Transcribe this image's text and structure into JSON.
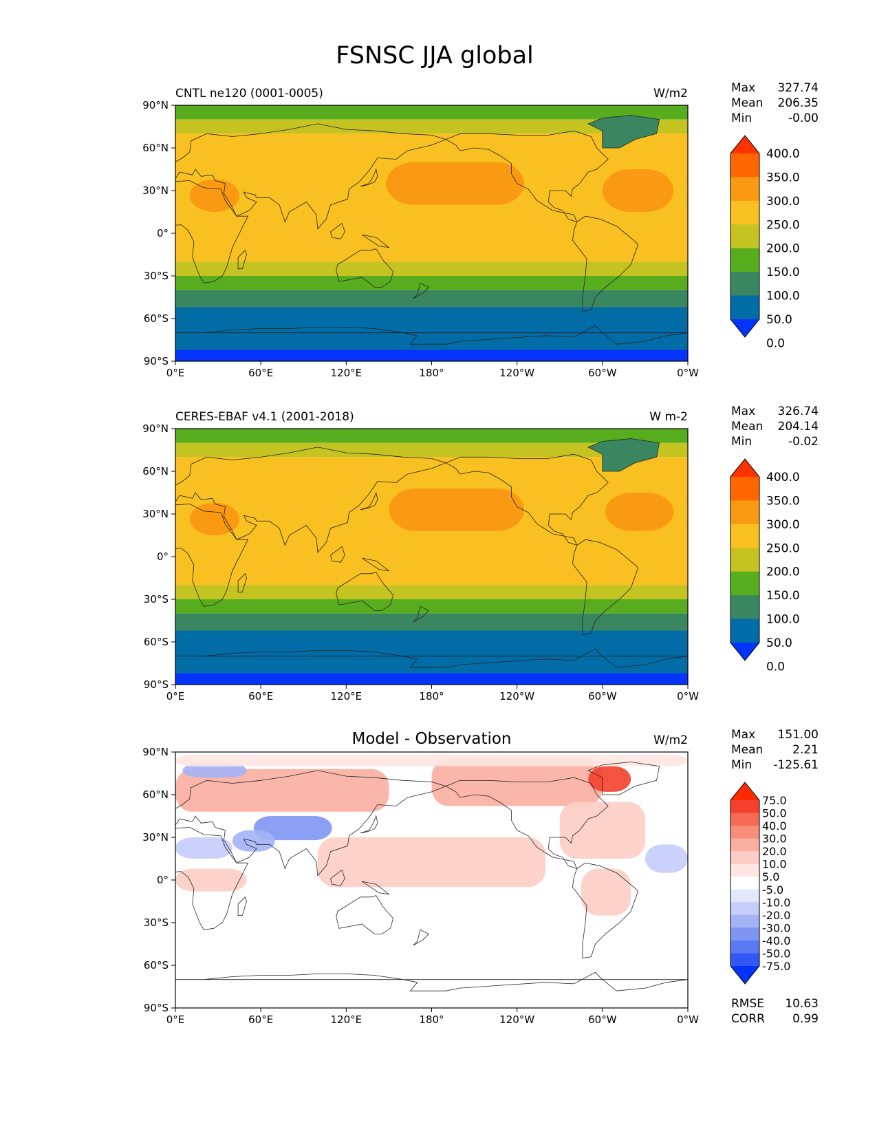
{
  "figure": {
    "title": "FSNSC JJA global"
  },
  "chart_data": [
    {
      "type": "heatmap",
      "title": "CNTL ne120 (0001-0005)",
      "units": "W/m2",
      "stats": {
        "max_label": "Max",
        "max": "327.74",
        "mean_label": "Mean",
        "mean": "206.35",
        "min_label": "Min",
        "min": "-0.00"
      },
      "x_ticks": [
        "0°E",
        "60°E",
        "120°E",
        "180°",
        "120°W",
        "60°W",
        "0°W"
      ],
      "y_ticks": [
        "90°N",
        "60°N",
        "30°N",
        "0°",
        "30°S",
        "60°S",
        "90°S"
      ],
      "xlim": [
        0,
        360
      ],
      "ylim": [
        -90,
        90
      ],
      "colorbar": {
        "levels": [
          "400.0",
          "350.0",
          "300.0",
          "250.0",
          "200.0",
          "150.0",
          "100.0",
          "50.0",
          "0.0"
        ],
        "colors": [
          "#ff3300",
          "#ff6600",
          "#fa9a12",
          "#f9c021",
          "#c5c321",
          "#58ad1f",
          "#3a8660",
          "#026ca7",
          "#0433fa"
        ],
        "extend": "both"
      }
    },
    {
      "type": "heatmap",
      "title": "CERES-EBAF v4.1 (2001-2018)",
      "units": "W m-2",
      "stats": {
        "max_label": "Max",
        "max": "326.74",
        "mean_label": "Mean",
        "mean": "204.14",
        "min_label": "Min",
        "min": "-0.02"
      },
      "x_ticks": [
        "0°E",
        "60°E",
        "120°E",
        "180°",
        "120°W",
        "60°W",
        "0°W"
      ],
      "y_ticks": [
        "90°N",
        "60°N",
        "30°N",
        "0°",
        "30°S",
        "60°S",
        "90°S"
      ],
      "xlim": [
        0,
        360
      ],
      "ylim": [
        -90,
        90
      ],
      "colorbar": {
        "levels": [
          "400.0",
          "350.0",
          "300.0",
          "250.0",
          "200.0",
          "150.0",
          "100.0",
          "50.0",
          "0.0"
        ],
        "colors": [
          "#ff3300",
          "#ff6600",
          "#fa9a12",
          "#f9c021",
          "#c5c321",
          "#58ad1f",
          "#3a8660",
          "#026ca7",
          "#0433fa"
        ],
        "extend": "both"
      }
    },
    {
      "type": "heatmap",
      "title": "Model - Observation",
      "units": "W/m2",
      "stats": {
        "max_label": "Max",
        "max": "151.00",
        "mean_label": "Mean",
        "mean": "2.21",
        "min_label": "Min",
        "min": "-125.61"
      },
      "x_ticks": [
        "0°E",
        "60°E",
        "120°E",
        "180°",
        "120°W",
        "60°W",
        "0°W"
      ],
      "y_ticks": [
        "90°N",
        "60°N",
        "30°N",
        "0°",
        "30°S",
        "60°S",
        "90°S"
      ],
      "xlim": [
        0,
        360
      ],
      "ylim": [
        -90,
        90
      ],
      "colorbar": {
        "levels": [
          "75.0",
          "50.0",
          "40.0",
          "30.0",
          "20.0",
          "10.0",
          "5.0",
          "-5.0",
          "-10.0",
          "-20.0",
          "-30.0",
          "-40.0",
          "-50.0",
          "-75.0"
        ],
        "colors": [
          "#ff2a00",
          "#f4402c",
          "#f46a55",
          "#f78e7a",
          "#faae9f",
          "#fccdc4",
          "#ffe6e1",
          "#ffffff",
          "#e2e7ff",
          "#c4cdfb",
          "#a3b3f6",
          "#7f95f3",
          "#5b79f3",
          "#3356f7",
          "#0433fa"
        ],
        "extend": "both"
      },
      "metrics": {
        "rmse_label": "RMSE",
        "rmse": "10.63",
        "corr_label": "CORR",
        "corr": "0.99"
      }
    }
  ]
}
